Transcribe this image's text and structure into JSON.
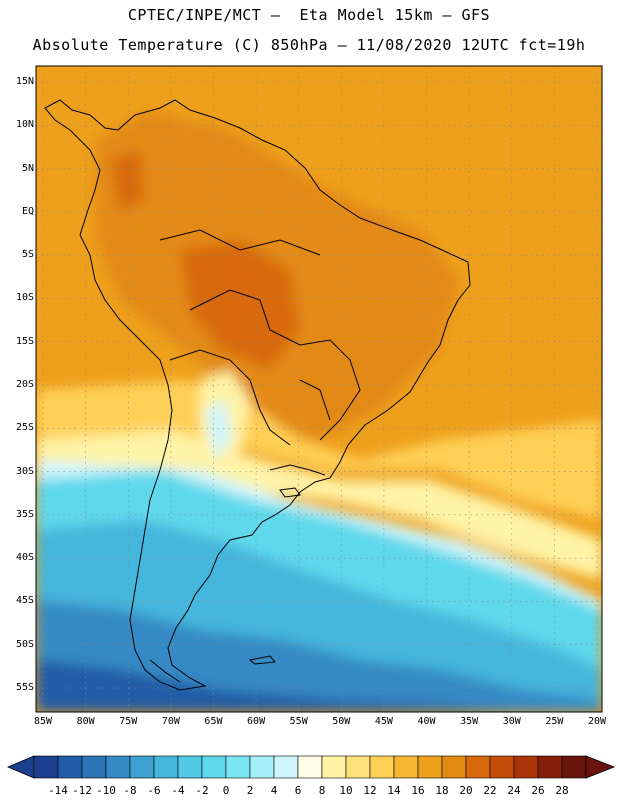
{
  "header": {
    "line1": "CPTEC/INPE/MCT –  Eta Model 15km – GFS",
    "line2": "Absolute Temperature (C) 850hPa – 11/08/2020 12UTC fct=19h"
  },
  "map": {
    "latitude_labels": [
      "15N",
      "10N",
      "5N",
      "EQ",
      "5S",
      "10S",
      "15S",
      "20S",
      "25S",
      "30S",
      "35S",
      "40S",
      "45S",
      "50S",
      "55S"
    ],
    "longitude_labels": [
      "85W",
      "80W",
      "75W",
      "70W",
      "65W",
      "60W",
      "55W",
      "50W",
      "45W",
      "40W",
      "35W",
      "30W",
      "25W",
      "20W"
    ],
    "lat_range": [
      15,
      -55
    ],
    "lon_range": [
      -85,
      -20
    ]
  },
  "colorbar": {
    "labels": [
      "-14",
      "-12",
      "-10",
      "-8",
      "-6",
      "-4",
      "-2",
      "0",
      "2",
      "4",
      "6",
      "8",
      "10",
      "12",
      "14",
      "16",
      "18",
      "20",
      "22",
      "24",
      "26",
      "28"
    ],
    "colors": [
      "#1c3f8f",
      "#235ca6",
      "#2c74b6",
      "#3589c4",
      "#3ea0d0",
      "#45b6dc",
      "#52c9e4",
      "#5fd8ec",
      "#7ae6f2",
      "#a6f0f7",
      "#cff5fa",
      "#fffbe4",
      "#fff3a6",
      "#ffe27a",
      "#ffd056",
      "#f7b733",
      "#eea01c",
      "#e38a12",
      "#d86a0c",
      "#c54d08",
      "#a83407",
      "#861f0a",
      "#6a140e"
    ],
    "units": "C"
  }
}
